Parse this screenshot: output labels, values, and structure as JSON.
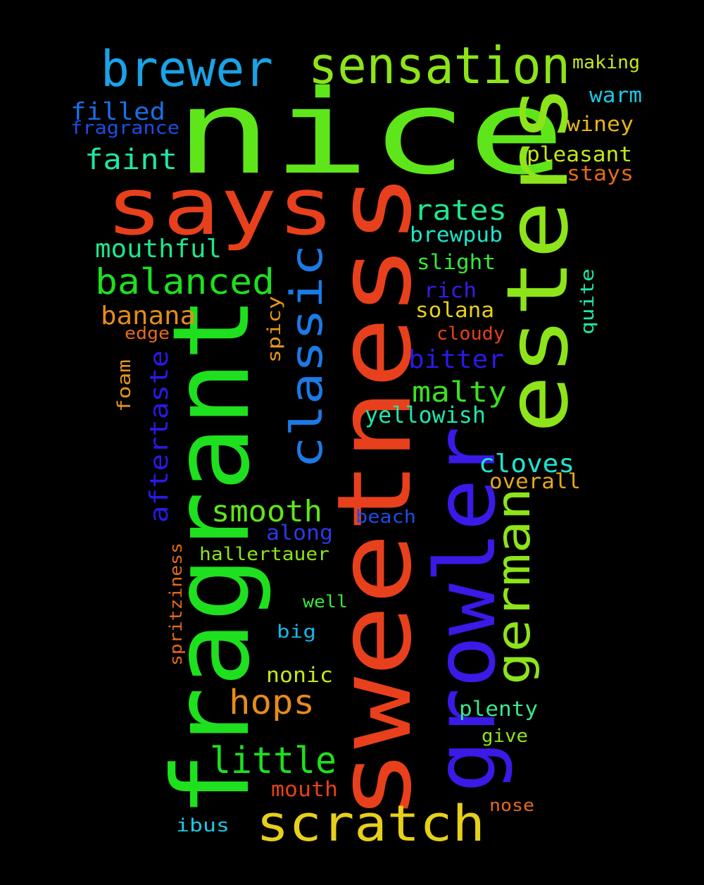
{
  "background": "#000000",
  "words": [
    {
      "text": "nice",
      "color": "#5ee61a"
    },
    {
      "text": "sweetness",
      "color": "#e8401c"
    },
    {
      "text": "fragrant",
      "color": "#1ee01e"
    },
    {
      "text": "esters",
      "color": "#8de41a"
    },
    {
      "text": "growler",
      "color": "#3a1ae6"
    },
    {
      "text": "says",
      "color": "#e8401c"
    },
    {
      "text": "sensation",
      "color": "#8de41a"
    },
    {
      "text": "brewer",
      "color": "#1aa3e6"
    },
    {
      "text": "classic",
      "color": "#1a7be6"
    },
    {
      "text": "german",
      "color": "#8de41a"
    },
    {
      "text": "scratch",
      "color": "#e6d01a"
    },
    {
      "text": "little",
      "color": "#1ee01e"
    },
    {
      "text": "balanced",
      "color": "#1ee01e"
    },
    {
      "text": "hops",
      "color": "#e68c1a"
    },
    {
      "text": "smooth",
      "color": "#5ee61a"
    },
    {
      "text": "malty",
      "color": "#3de01e"
    },
    {
      "text": "faint",
      "color": "#1ee6a8"
    },
    {
      "text": "rates",
      "color": "#1ee68c"
    },
    {
      "text": "mouthful",
      "color": "#1ee68c"
    },
    {
      "text": "banana",
      "color": "#e68c1a"
    },
    {
      "text": "cloves",
      "color": "#1ee6d2"
    },
    {
      "text": "bitter",
      "color": "#2a1ae6"
    },
    {
      "text": "aftertaste",
      "color": "#2a1ae6"
    },
    {
      "text": "filled",
      "color": "#1a6ee6"
    },
    {
      "text": "yellowish",
      "color": "#1ee6b0"
    },
    {
      "text": "overall",
      "color": "#e6a81a"
    },
    {
      "text": "pleasant",
      "color": "#c8e61a"
    },
    {
      "text": "brewpub",
      "color": "#1ee6c8"
    },
    {
      "text": "slight",
      "color": "#3ae63a"
    },
    {
      "text": "warm",
      "color": "#1ac8e6"
    },
    {
      "text": "winey",
      "color": "#e6b41a"
    },
    {
      "text": "plenty",
      "color": "#3ae68c"
    },
    {
      "text": "solana",
      "color": "#e6d01a"
    },
    {
      "text": "mouth",
      "color": "#e8401c"
    },
    {
      "text": "rich",
      "color": "#3a1ae6"
    },
    {
      "text": "along",
      "color": "#2a3ae6"
    },
    {
      "text": "nonic",
      "color": "#c8e61a"
    },
    {
      "text": "stays",
      "color": "#e66a1a"
    },
    {
      "text": "hallertauer",
      "color": "#8de41a"
    },
    {
      "text": "fragrance",
      "color": "#1a4ee6"
    },
    {
      "text": "beach",
      "color": "#1a4ee6"
    },
    {
      "text": "ibus",
      "color": "#1ac8e6"
    },
    {
      "text": "foam",
      "color": "#e6961a"
    },
    {
      "text": "spicy",
      "color": "#e6961a"
    },
    {
      "text": "big",
      "color": "#1ab4e6"
    },
    {
      "text": "quite",
      "color": "#1ee6a8"
    },
    {
      "text": "give",
      "color": "#8de41a"
    },
    {
      "text": "making",
      "color": "#c8e61a"
    },
    {
      "text": "cloudy",
      "color": "#e8401c"
    },
    {
      "text": "nose",
      "color": "#e66a1a"
    },
    {
      "text": "edge",
      "color": "#e66a1a"
    },
    {
      "text": "well",
      "color": "#3ae63a"
    },
    {
      "text": "spritziness",
      "color": "#e66a1a"
    }
  ]
}
